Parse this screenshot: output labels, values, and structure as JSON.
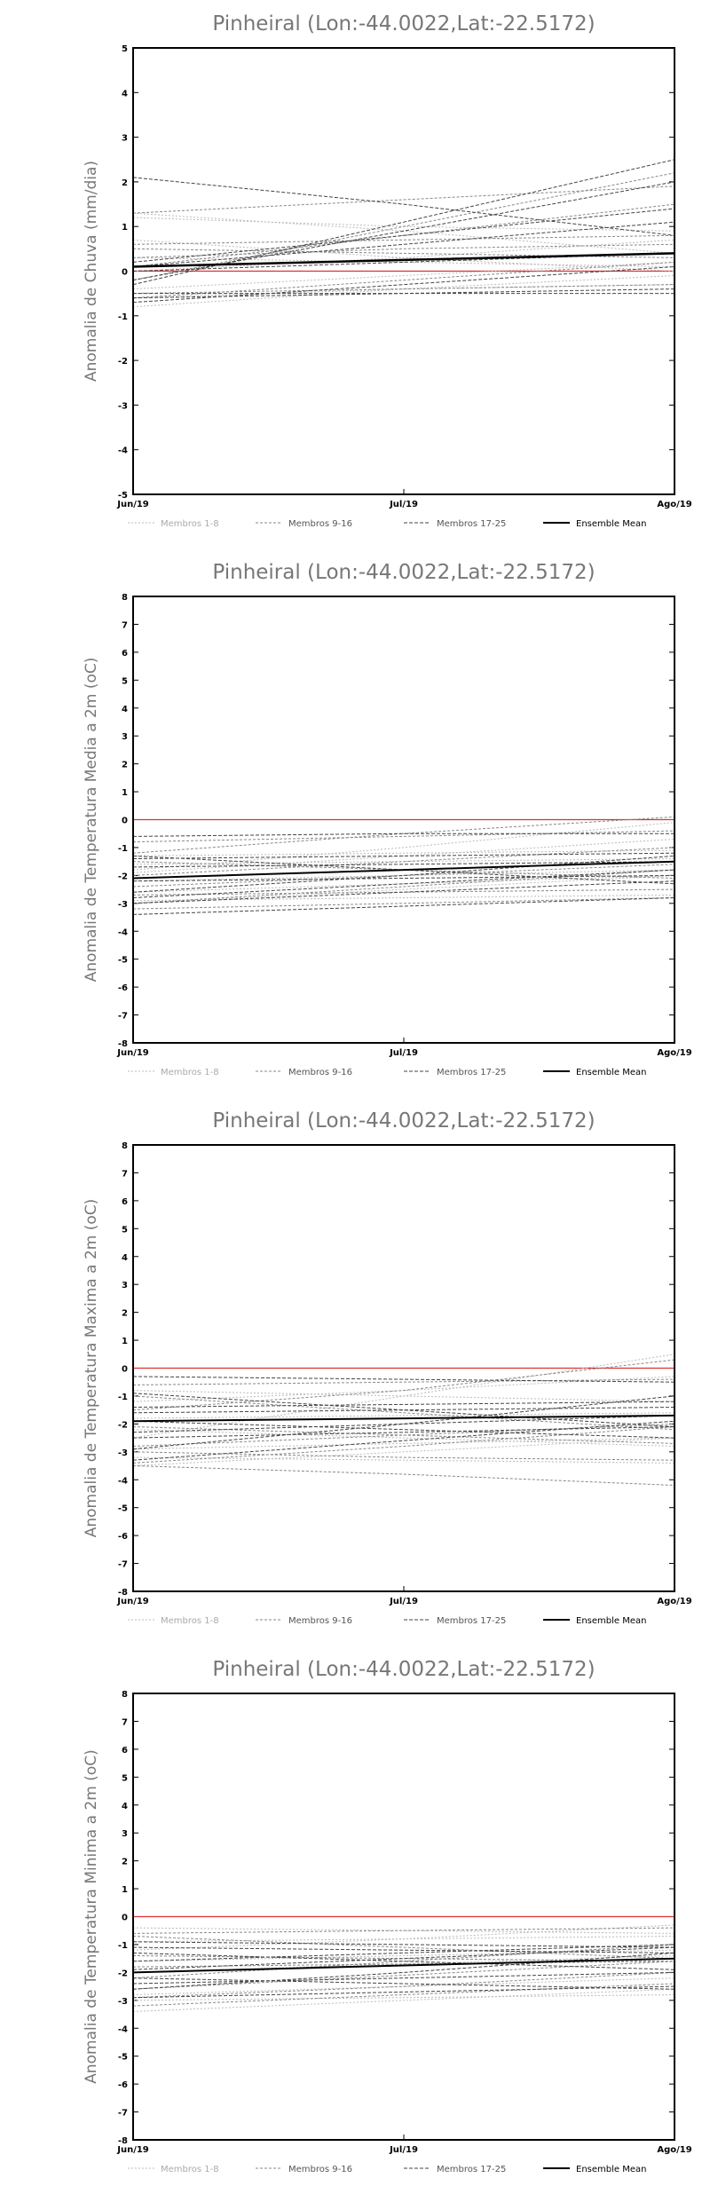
{
  "chart_data": [
    {
      "type": "line",
      "title": "Pinheiral (Lon:-44.0022,Lat:-22.5172)",
      "ylabel": "Anomalia de Chuva (mm/dia)",
      "xlabel": "",
      "x": [
        "Jun/19",
        "Jul/19",
        "Ago/19"
      ],
      "ylim": [
        -5,
        5
      ],
      "yticks": [
        -5,
        -4,
        -3,
        -2,
        -1,
        0,
        1,
        2,
        3,
        4,
        5
      ],
      "zero_line_color": "#e03030",
      "legend_position": "bottom",
      "legend": [
        "Membros 1-8",
        "Membros 9-16",
        "Membros 17-25",
        "Ensemble Mean"
      ],
      "series": [
        {
          "name": "Membros 1-8",
          "color": "#bbbbbb",
          "dash": "2,2",
          "width": 1,
          "values": [
            [
              1.2,
              1.0,
              0.9
            ],
            [
              0.7,
              0.3,
              0.0
            ],
            [
              -0.4,
              -0.1,
              0.2
            ],
            [
              -0.6,
              -0.4,
              -0.3
            ],
            [
              0.0,
              0.3,
              0.7
            ],
            [
              1.3,
              0.9,
              0.4
            ],
            [
              -0.8,
              -0.4,
              -0.1
            ],
            [
              0.3,
              0.2,
              0.1
            ]
          ]
        },
        {
          "name": "Membros 9-16",
          "color": "#888888",
          "dash": "3,2",
          "width": 1,
          "values": [
            [
              1.3,
              1.6,
              1.9
            ],
            [
              0.1,
              0.8,
              1.5
            ],
            [
              -0.5,
              -0.4,
              -0.3
            ],
            [
              0.5,
              0.4,
              0.3
            ],
            [
              -0.2,
              1.0,
              2.2
            ],
            [
              0.3,
              0.5,
              0.6
            ],
            [
              -0.6,
              -0.2,
              0.2
            ],
            [
              0.6,
              0.7,
              0.8
            ]
          ]
        },
        {
          "name": "Membros 17-25",
          "color": "#444444",
          "dash": "4,2",
          "width": 1,
          "values": [
            [
              2.1,
              1.5,
              0.8
            ],
            [
              -0.3,
              1.1,
              2.5
            ],
            [
              -0.2,
              0.9,
              2.0
            ],
            [
              0.2,
              0.8,
              1.4
            ],
            [
              -0.5,
              -0.5,
              -0.5
            ],
            [
              -0.6,
              -0.5,
              -0.4
            ],
            [
              0.0,
              0.2,
              0.4
            ],
            [
              -0.7,
              -0.3,
              0.1
            ],
            [
              0.1,
              0.6,
              1.1
            ]
          ]
        },
        {
          "name": "Ensemble Mean",
          "color": "#000000",
          "dash": "none",
          "width": 2.5,
          "values": [
            [
              0.1,
              0.25,
              0.4
            ]
          ]
        }
      ]
    },
    {
      "type": "line",
      "title": "Pinheiral (Lon:-44.0022,Lat:-22.5172)",
      "ylabel": "Anomalia de Temperatura Media a 2m (oC)",
      "xlabel": "",
      "x": [
        "Jun/19",
        "Jul/19",
        "Ago/19"
      ],
      "ylim": [
        -8,
        8
      ],
      "yticks": [
        -8,
        -7,
        -6,
        -5,
        -4,
        -3,
        -2,
        -1,
        0,
        1,
        2,
        3,
        4,
        5,
        6,
        7,
        8
      ],
      "zero_line_color": "#e03030",
      "legend_position": "bottom",
      "legend": [
        "Membros 1-8",
        "Membros 9-16",
        "Membros 17-25",
        "Ensemble Mean"
      ],
      "series": [
        {
          "name": "Membros 1-8",
          "color": "#bbbbbb",
          "dash": "2,2",
          "width": 1,
          "values": [
            [
              -1.8,
              -1.0,
              -0.1
            ],
            [
              -2.2,
              -2.0,
              -1.8
            ],
            [
              -2.6,
              -2.3,
              -2.0
            ],
            [
              -1.3,
              -1.2,
              -1.1
            ],
            [
              -3.0,
              -2.5,
              -2.0
            ],
            [
              -1.6,
              -1.5,
              -1.4
            ],
            [
              -2.9,
              -2.8,
              -2.7
            ],
            [
              -1.9,
              -1.3,
              -0.7
            ]
          ]
        },
        {
          "name": "Membros 9-16",
          "color": "#888888",
          "dash": "3,2",
          "width": 1,
          "values": [
            [
              -3.2,
              -3.0,
              -2.8
            ],
            [
              -2.0,
              -1.5,
              -1.0
            ],
            [
              -1.5,
              -1.8,
              -2.1
            ],
            [
              -3.0,
              -2.4,
              -1.8
            ],
            [
              -0.8,
              -0.6,
              -0.4
            ],
            [
              -1.2,
              -0.5,
              0.1
            ],
            [
              -2.4,
              -2.0,
              -1.6
            ],
            [
              -2.7,
              -2.6,
              -2.5
            ]
          ]
        },
        {
          "name": "Membros 17-25",
          "color": "#444444",
          "dash": "4,2",
          "width": 1,
          "values": [
            [
              -1.3,
              -1.8,
              -2.3
            ],
            [
              -2.6,
              -2.0,
              -1.3
            ],
            [
              -3.4,
              -3.1,
              -2.8
            ],
            [
              -0.6,
              -0.5,
              -0.5
            ],
            [
              -2.8,
              -2.3,
              -1.8
            ],
            [
              -1.7,
              -1.6,
              -1.5
            ],
            [
              -2.2,
              -2.1,
              -2.0
            ],
            [
              -3.0,
              -2.6,
              -2.2
            ],
            [
              -1.4,
              -1.3,
              -1.2
            ]
          ]
        },
        {
          "name": "Ensemble Mean",
          "color": "#000000",
          "dash": "none",
          "width": 2,
          "values": [
            [
              -2.1,
              -1.8,
              -1.5
            ]
          ]
        }
      ]
    },
    {
      "type": "line",
      "title": "Pinheiral (Lon:-44.0022,Lat:-22.5172)",
      "ylabel": "Anomalia de Temperatura Maxima a 2m (oC)",
      "xlabel": "",
      "x": [
        "Jun/19",
        "Jul/19",
        "Ago/19"
      ],
      "ylim": [
        -8,
        8
      ],
      "yticks": [
        -8,
        -7,
        -6,
        -5,
        -4,
        -3,
        -2,
        -1,
        0,
        1,
        2,
        3,
        4,
        5,
        6,
        7,
        8
      ],
      "zero_line_color": "#e03030",
      "legend_position": "bottom",
      "legend": [
        "Membros 1-8",
        "Membros 9-16",
        "Membros 17-25",
        "Ensemble Mean"
      ],
      "series": [
        {
          "name": "Membros 1-8",
          "color": "#bbbbbb",
          "dash": "2,2",
          "width": 1,
          "values": [
            [
              -2.5,
              -1.0,
              0.5
            ],
            [
              -1.8,
              -1.7,
              -1.6
            ],
            [
              -3.2,
              -3.3,
              -3.4
            ],
            [
              -0.8,
              -1.0,
              -1.2
            ],
            [
              -2.2,
              -2.5,
              -2.8
            ],
            [
              -1.2,
              -0.8,
              -0.3
            ],
            [
              -3.5,
              -3.0,
              -2.5
            ],
            [
              -2.9,
              -2.7,
              -2.5
            ]
          ]
        },
        {
          "name": "Membros 9-16",
          "color": "#888888",
          "dash": "3,2",
          "width": 1,
          "values": [
            [
              -3.5,
              -3.8,
              -4.2
            ],
            [
              -1.5,
              -0.8,
              0.3
            ],
            [
              -2.8,
              -2.4,
              -2.0
            ],
            [
              -1.0,
              -1.6,
              -2.2
            ],
            [
              -3.4,
              -2.8,
              -2.1
            ],
            [
              -0.6,
              -0.5,
              -0.4
            ],
            [
              -2.1,
              -2.4,
              -2.7
            ],
            [
              -3.0,
              -3.2,
              -3.3
            ]
          ]
        },
        {
          "name": "Membros 17-25",
          "color": "#444444",
          "dash": "4,2",
          "width": 1,
          "values": [
            [
              -0.9,
              -1.5,
              -2.1
            ],
            [
              -2.9,
              -2.0,
              -1.0
            ],
            [
              -1.4,
              -1.3,
              -1.2
            ],
            [
              -2.5,
              -2.3,
              -2.1
            ],
            [
              -0.3,
              -0.4,
              -0.5
            ],
            [
              -1.9,
              -2.2,
              -2.5
            ],
            [
              -3.3,
              -2.6,
              -1.9
            ],
            [
              -1.6,
              -1.5,
              -1.4
            ],
            [
              -2.3,
              -2.0,
              -1.7
            ]
          ]
        },
        {
          "name": "Ensemble Mean",
          "color": "#000000",
          "dash": "none",
          "width": 2,
          "values": [
            [
              -1.9,
              -1.8,
              -1.7
            ]
          ]
        }
      ]
    },
    {
      "type": "line",
      "title": "Pinheiral (Lon:-44.0022,Lat:-22.5172)",
      "ylabel": "Anomalia de Temperatura Minima a 2m (oC)",
      "xlabel": "",
      "x": [
        "Jun/19",
        "Jul/19",
        "Ago/19"
      ],
      "ylim": [
        -8,
        8
      ],
      "yticks": [
        -8,
        -7,
        -6,
        -5,
        -4,
        -3,
        -2,
        -1,
        0,
        1,
        2,
        3,
        4,
        5,
        6,
        7,
        8
      ],
      "zero_line_color": "#e03030",
      "legend_position": "bottom",
      "legend": [
        "Membros 1-8",
        "Membros 9-16",
        "Membros 17-25",
        "Ensemble Mean"
      ],
      "series": [
        {
          "name": "Membros 1-8",
          "color": "#bbbbbb",
          "dash": "2,2",
          "width": 1,
          "values": [
            [
              -3.4,
              -3.0,
              -2.6
            ],
            [
              -1.2,
              -0.8,
              -0.3
            ],
            [
              -2.0,
              -1.7,
              -1.4
            ],
            [
              -0.4,
              -0.5,
              -0.6
            ],
            [
              -2.8,
              -2.5,
              -2.2
            ],
            [
              -1.6,
              -1.4,
              -1.2
            ],
            [
              -3.0,
              -2.9,
              -2.8
            ],
            [
              -0.9,
              -0.8,
              -0.7
            ]
          ]
        },
        {
          "name": "Membros 9-16",
          "color": "#888888",
          "dash": "3,2",
          "width": 1,
          "values": [
            [
              -2.2,
              -1.6,
              -1.0
            ],
            [
              -3.2,
              -2.8,
              -2.4
            ],
            [
              -0.6,
              -0.5,
              -0.4
            ],
            [
              -2.6,
              -2.1,
              -1.6
            ],
            [
              -1.4,
              -1.5,
              -1.6
            ],
            [
              -2.9,
              -2.5,
              -2.0
            ],
            [
              -0.7,
              -1.1,
              -1.5
            ],
            [
              -1.8,
              -1.7,
              -1.6
            ]
          ]
        },
        {
          "name": "Membros 17-25",
          "color": "#444444",
          "dash": "4,2",
          "width": 1,
          "values": [
            [
              -2.6,
              -2.0,
              -1.3
            ],
            [
              -1.3,
              -1.6,
              -1.9
            ],
            [
              -2.9,
              -2.7,
              -2.5
            ],
            [
              -1.9,
              -1.5,
              -1.1
            ],
            [
              -0.9,
              -1.0,
              -1.1
            ],
            [
              -2.4,
              -2.2,
              -2.0
            ],
            [
              -1.6,
              -1.3,
              -1.0
            ],
            [
              -2.2,
              -2.4,
              -2.6
            ],
            [
              -1.1,
              -1.2,
              -1.3
            ]
          ]
        },
        {
          "name": "Ensemble Mean",
          "color": "#000000",
          "dash": "none",
          "width": 2,
          "values": [
            [
              -2.0,
              -1.75,
              -1.5
            ]
          ]
        }
      ]
    }
  ]
}
